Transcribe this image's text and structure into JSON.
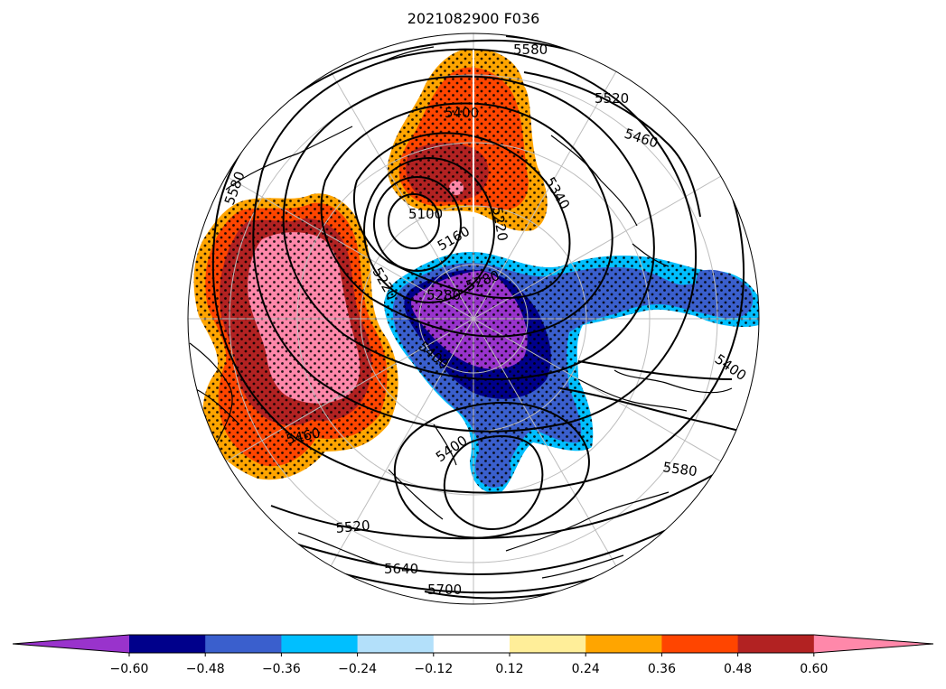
{
  "title": "2021082900 F036",
  "map": {
    "projection": "north-polar-stereographic",
    "contour_color": "#000000",
    "graticule_color": "#bdbdbd",
    "contour_labels": {
      "l5580_top": "5580",
      "l5520_top": "5520",
      "l5460_top": "5460",
      "l5400_top": "5400",
      "l5340_top": "5340",
      "l5220_center": "5220",
      "l5160": "5160",
      "l5100": "5100",
      "l5220_left": "5220",
      "l5280_a": "5280",
      "l5280_b": "5280",
      "l5400_center": "5400",
      "l5460_left": "5460",
      "l5400_bottom": "5400",
      "l5400_right": "5400",
      "l5580_right": "5580",
      "l5520_bottom": "5520",
      "l5640": "5640",
      "l5700": "5700",
      "l5580_left": "5580"
    }
  },
  "colorbar": {
    "colors": [
      "#9933cc",
      "#00008b",
      "#3a5fcd",
      "#00bfff",
      "#b3e0fa",
      "#ffffff",
      "#ffee99",
      "#ffa500",
      "#ff4500",
      "#b22222",
      "#ff88aa"
    ],
    "ticks": [
      "−0.60",
      "−0.48",
      "−0.36",
      "−0.24",
      "−0.12",
      "0.12",
      "0.24",
      "0.36",
      "0.48",
      "0.60"
    ],
    "extend": "both"
  }
}
